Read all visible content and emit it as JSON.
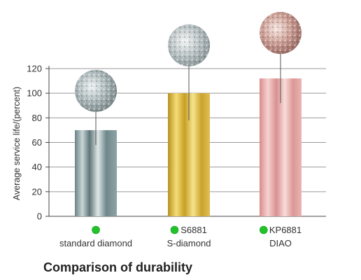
{
  "caption": "Comparison of durability",
  "chart_data": {
    "type": "bar",
    "categories": [
      {
        "line1": "standard diamond",
        "line2": ""
      },
      {
        "line1": "S6881",
        "line2": "S-diamond"
      },
      {
        "line1": "KP6881",
        "line2": "DIAO"
      }
    ],
    "values": [
      70,
      100,
      112
    ],
    "error_upper": [
      86,
      123,
      133
    ],
    "error_lower": [
      58,
      78,
      92
    ],
    "ylabel": "Average service life/(percent)",
    "ylim": [
      0,
      125
    ],
    "yticks": [
      0,
      20,
      40,
      60,
      80,
      100,
      120
    ],
    "grid": true,
    "colors": {
      "standard diamond": "#7d9598",
      "S6881": "#d9b73c",
      "KP6881": "#e3a3a3",
      "legend_dot": "#22c22a"
    }
  }
}
